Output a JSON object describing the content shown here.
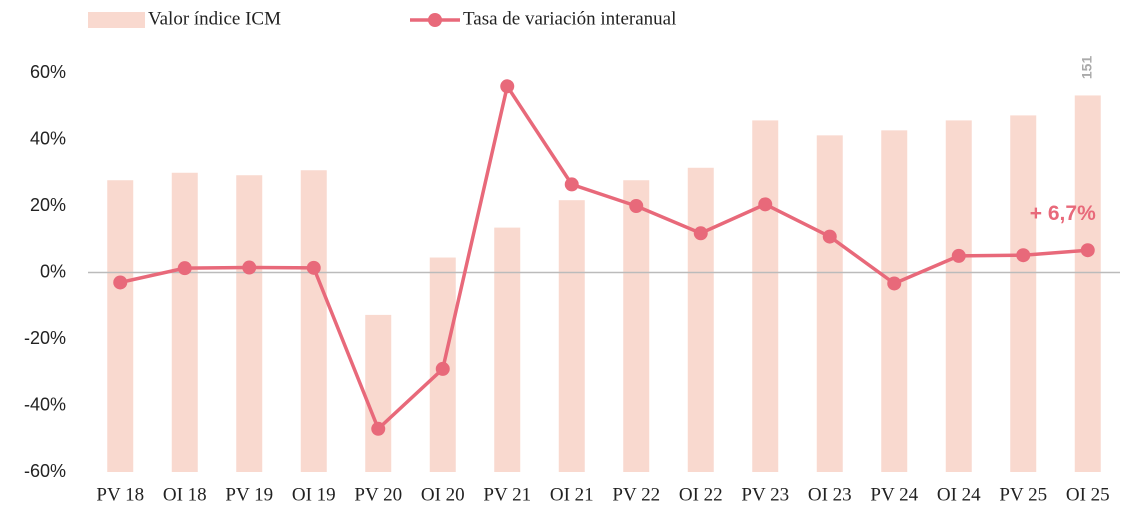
{
  "chart_data": {
    "type": "bar-line",
    "categories": [
      "PV 18",
      "OI 18",
      "PV 19",
      "OI 19",
      "PV 20",
      "OI 20",
      "PV 21",
      "OI 21",
      "PV 22",
      "OI 22",
      "PV 23",
      "OI 23",
      "PV 24",
      "OI 24",
      "PV 25",
      "OI 25"
    ],
    "series": [
      {
        "name": "Valor índice ICM",
        "type": "bar",
        "axis": "y2",
        "color": "#f9d9cf",
        "values": [
          117,
          120,
          119,
          121,
          63,
          86,
          98,
          109,
          117,
          122,
          141,
          135,
          137,
          141,
          143,
          151
        ]
      },
      {
        "name": "Tasa de variación interanual",
        "type": "line",
        "color": "#e8697a",
        "values": [
          -3,
          1.3,
          1.5,
          1.4,
          -47,
          -29,
          56,
          26.5,
          20,
          11.8,
          20.5,
          10.8,
          -3.3,
          5,
          5.2,
          6.7
        ]
      }
    ],
    "annotation": "+ 6,7%",
    "ylim": [
      -60,
      60
    ],
    "yticks": [
      {
        "value": -60,
        "label": "-60%"
      },
      {
        "value": -40,
        "label": "-40%"
      },
      {
        "value": -20,
        "label": "-20%"
      },
      {
        "value": 0,
        "label": "0%"
      },
      {
        "value": 20,
        "label": "20%"
      },
      {
        "value": 40,
        "label": "40%"
      },
      {
        "value": 60,
        "label": "60%"
      }
    ],
    "y2lim": [
      0,
      160
    ]
  }
}
